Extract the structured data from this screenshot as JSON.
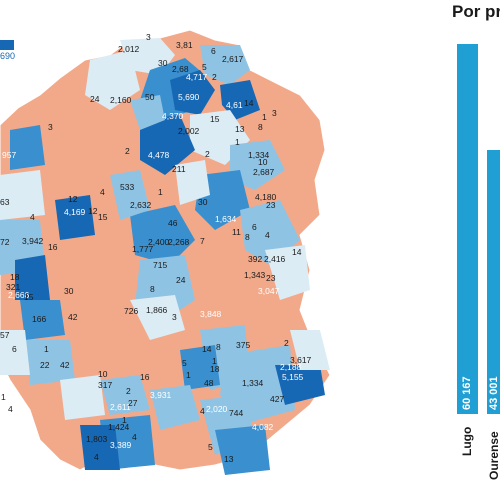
{
  "panel": {
    "title": "Por pr"
  },
  "legend": {
    "max": "690",
    "color": "#1668b5"
  },
  "colors": {
    "zero": "#f2a98a",
    "light": "#dcecf5",
    "mid": "#8fc3e4",
    "dark": "#3a8fcf",
    "darkest": "#1668b5",
    "bar": "#1f9fd3"
  },
  "bars": [
    {
      "name": "Lugo",
      "value_label": "60 167",
      "value": 60167
    },
    {
      "name": "Ourense",
      "value_label": "43 001",
      "value": 43001
    }
  ],
  "map_labels": [
    "2,012",
    "3",
    "3,81",
    "6",
    "2,617",
    "30",
    "2,68",
    "4,717",
    "5",
    "2",
    "50",
    "5,690",
    "4,61",
    "14",
    "24",
    "2,160",
    "3",
    "4,370",
    "15",
    "13",
    "8",
    "1",
    "3",
    "2,002",
    "1",
    "1,334",
    "2",
    "4,478",
    "211",
    "2",
    "10",
    "2,687",
    "533",
    "4",
    "957",
    "1",
    "4,180",
    "23",
    "6",
    "2,632",
    "30",
    "1,634",
    "12",
    "63",
    "4",
    "4,169",
    "15",
    "12",
    "46",
    "11",
    "8",
    "4",
    "2,400",
    "2,268",
    "7",
    "392",
    "2,416",
    "14",
    "72",
    "3,942",
    "16",
    "1,777",
    "715",
    "1,343",
    "23",
    "18",
    "321",
    "8",
    "24",
    "3,047",
    "2,666",
    "15",
    "30",
    "726",
    "1,866",
    "3",
    "3,848",
    "166",
    "42",
    "57",
    "14",
    "8",
    "375",
    "2",
    "3,617",
    "1",
    "6",
    "10",
    "5",
    "1",
    "1",
    "317",
    "2,188",
    "18",
    "5,155",
    "22",
    "42",
    "48",
    "1,334",
    "427",
    "1",
    "4",
    "2",
    "2,611",
    "1",
    "4",
    "744",
    "1,424",
    "27",
    "4",
    "2,020",
    "4,082",
    "3,931",
    "16",
    "1,803",
    "3,389",
    "5",
    "13",
    "4"
  ]
}
